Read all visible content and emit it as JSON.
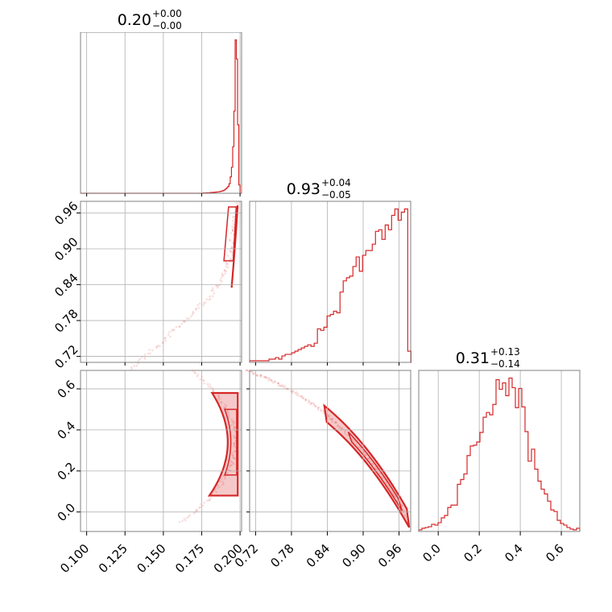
{
  "chart_data": {
    "type": "corner",
    "color": "#d62728",
    "params": [
      {
        "title": {
          "median": "0.20",
          "plus": "+0.00",
          "minus": "−0.00"
        },
        "range": [
          0.096,
          0.201
        ],
        "ticks": [
          {
            "v": 0.1,
            "label": "0.100"
          },
          {
            "v": 0.125,
            "label": "0.125"
          },
          {
            "v": 0.15,
            "label": "0.150"
          },
          {
            "v": 0.175,
            "label": "0.175"
          },
          {
            "v": 0.2,
            "label": "0.200"
          }
        ],
        "hist": {
          "x": [
            0.176,
            0.1768,
            0.1776,
            0.1784,
            0.1792,
            0.18,
            0.1808,
            0.1816,
            0.1824,
            0.1832,
            0.184,
            0.1848,
            0.1856,
            0.1864,
            0.1872,
            0.188,
            0.1888,
            0.1896,
            0.1904,
            0.1912,
            0.192,
            0.1928,
            0.1936,
            0.1944,
            0.1952,
            0.196,
            0.1968,
            0.1976,
            0.1984,
            0.1992
          ],
          "y": [
            1,
            1,
            1,
            2,
            2,
            2,
            3,
            3,
            3,
            4,
            4,
            5,
            5,
            6,
            7,
            8,
            10,
            12,
            16,
            20,
            25,
            35,
            60,
            95,
            170,
            300,
            560,
            490,
            250,
            30
          ]
        }
      },
      {
        "title": {
          "median": "0.93",
          "plus": "+0.04",
          "minus": "−0.05"
        },
        "range": [
          0.71,
          0.9795
        ],
        "ticks": [
          {
            "v": 0.72,
            "label": "0.72"
          },
          {
            "v": 0.78,
            "label": "0.78"
          },
          {
            "v": 0.84,
            "label": "0.84"
          },
          {
            "v": 0.9,
            "label": "0.90"
          },
          {
            "v": 0.96,
            "label": "0.96"
          }
        ],
        "hist": {
          "x": [
            0.71,
            0.7154,
            0.7208,
            0.7262,
            0.7316,
            0.737,
            0.7424,
            0.7478,
            0.7532,
            0.7586,
            0.764,
            0.7694,
            0.7748,
            0.7802,
            0.7856,
            0.791,
            0.7964,
            0.8018,
            0.8072,
            0.8126,
            0.818,
            0.8234,
            0.8288,
            0.8342,
            0.8396,
            0.845,
            0.8504,
            0.8558,
            0.8612,
            0.8666,
            0.872,
            0.8774,
            0.8828,
            0.8882,
            0.8936,
            0.899,
            0.9044,
            0.9098,
            0.9152,
            0.9206,
            0.926,
            0.9314,
            0.9368,
            0.9422,
            0.9476,
            0.953,
            0.9584,
            0.9638,
            0.9692,
            0.9746
          ],
          "y": [
            1,
            1,
            1,
            1,
            1,
            1,
            2,
            2,
            3,
            2,
            4,
            5,
            5,
            6,
            7,
            8,
            9,
            10,
            11,
            10,
            12,
            21,
            20,
            22,
            29,
            30,
            32,
            31,
            44,
            51,
            53,
            54,
            60,
            66,
            57,
            67,
            70,
            70,
            74,
            82,
            83,
            77,
            86,
            83,
            92,
            96,
            89,
            94,
            96,
            7
          ]
        }
      },
      {
        "title": {
          "median": "0.31",
          "plus": "+0.13",
          "minus": "−0.14"
        },
        "range": [
          -0.095,
          0.69
        ],
        "ticks": [
          {
            "v": 0.0,
            "label": "0.0"
          },
          {
            "v": 0.2,
            "label": "0.2"
          },
          {
            "v": 0.4,
            "label": "0.4"
          },
          {
            "v": 0.6,
            "label": "0.6"
          }
        ],
        "hist": {
          "x": [
            -0.095,
            -0.0793,
            -0.0636,
            -0.0479,
            -0.0322,
            -0.0165,
            -0.0008,
            0.0149,
            0.0306,
            0.0463,
            0.062,
            0.0777,
            0.0934,
            0.1091,
            0.1248,
            0.1405,
            0.1562,
            0.1719,
            0.1876,
            0.2033,
            0.219,
            0.2347,
            0.2504,
            0.2661,
            0.2818,
            0.2975,
            0.3132,
            0.3289,
            0.3446,
            0.3603,
            0.376,
            0.3917,
            0.4074,
            0.4231,
            0.438,
            0.4545,
            0.4702,
            0.4859,
            0.5016,
            0.5173,
            0.533,
            0.5487,
            0.5644,
            0.5801,
            0.5958,
            0.6115,
            0.6272,
            0.6429,
            0.6586,
            0.6743
          ],
          "y": [
            2,
            4,
            5,
            6,
            9,
            8,
            11,
            17,
            20,
            30,
            33,
            33,
            59,
            65,
            72,
            95,
            107,
            108,
            112,
            124,
            143,
            149,
            146,
            159,
            190,
            178,
            186,
            170,
            192,
            180,
            155,
            179,
            156,
            125,
            88,
            103,
            78,
            63,
            53,
            47,
            38,
            27,
            25,
            14,
            10,
            8,
            5,
            3,
            2,
            4
          ]
        }
      }
    ]
  }
}
